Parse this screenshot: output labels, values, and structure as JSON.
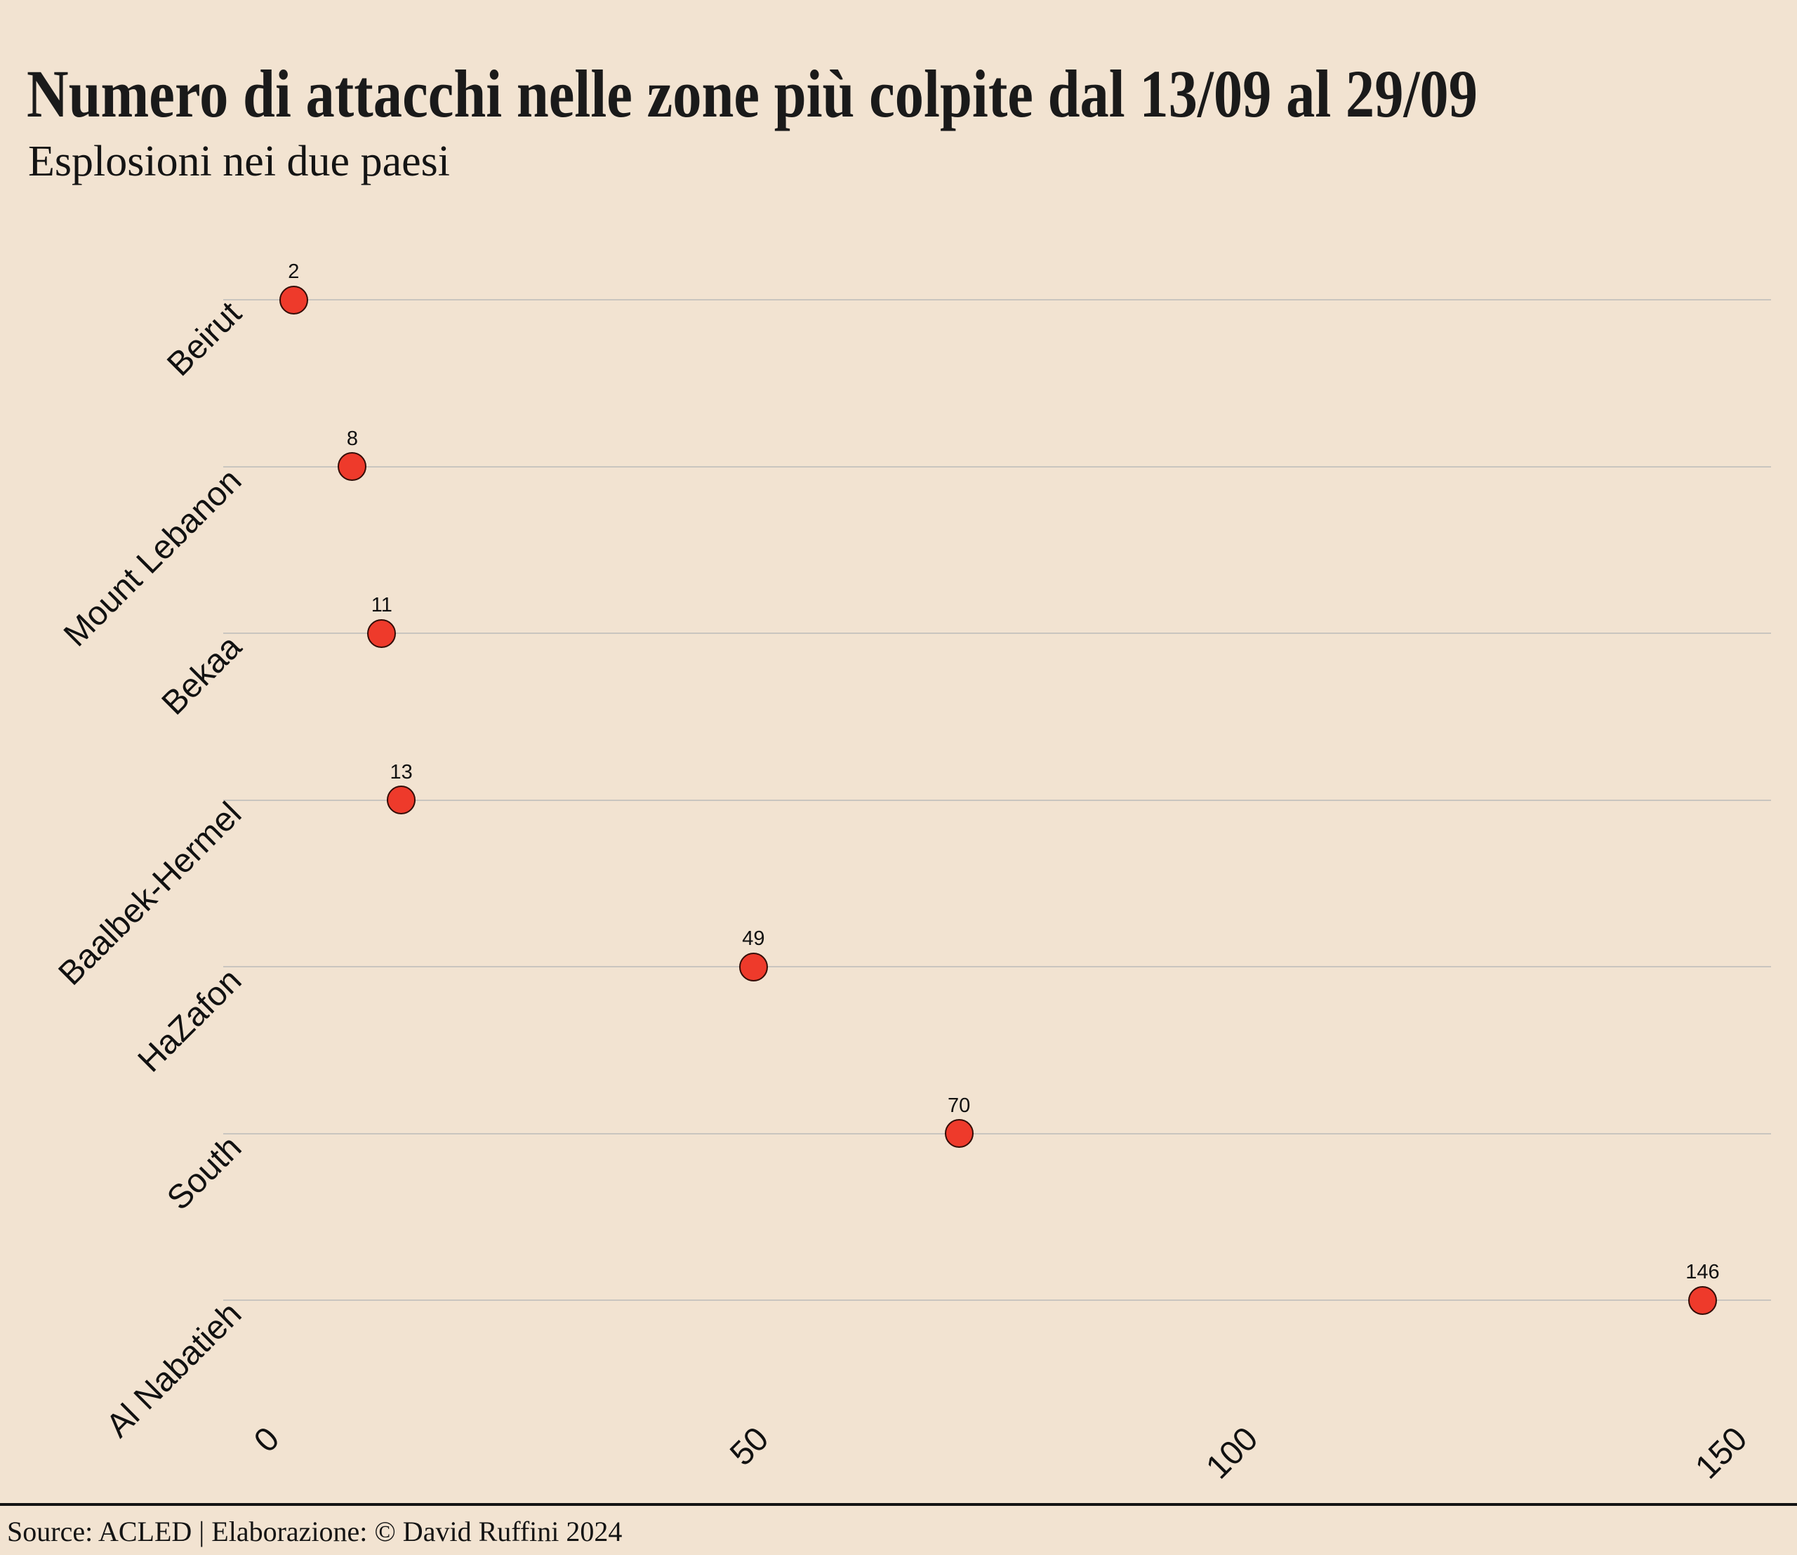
{
  "header": {
    "title": "Numero di attacchi nelle zone più colpite dal 13/09 al 29/09",
    "subtitle": "Esplosioni nei due paesi"
  },
  "footer": {
    "source": "Source: ACLED | Elaborazione: © David Ruffini 2024"
  },
  "colors": {
    "background": "#f2e3d1",
    "marker_fill": "#ee3a2b",
    "marker_edge": "#330d07",
    "gridline": "#c9c5bf",
    "text": "#141414",
    "divider": "#141414"
  },
  "chart_data": {
    "type": "scatter",
    "orientation": "horizontal",
    "title": "Numero di attacchi nelle zone più colpite dal 13/09 al 29/09",
    "subtitle": "Esplosioni nei due paesi",
    "categories": [
      "Beirut",
      "Mount Lebanon",
      "Bekaa",
      "Baalbek-Hermel",
      "HaZafon",
      "South",
      "Al Nabatieh"
    ],
    "values": [
      2,
      8,
      11,
      13,
      49,
      70,
      146
    ],
    "point_labels": [
      "2",
      "8",
      "11",
      "13",
      "49",
      "70",
      "146"
    ],
    "x_ticks": [
      0,
      50,
      100,
      150
    ],
    "xlim": [
      -5.2,
      153
    ],
    "xlabel": "",
    "ylabel": "",
    "grid": "horizontal",
    "legend": "none"
  }
}
